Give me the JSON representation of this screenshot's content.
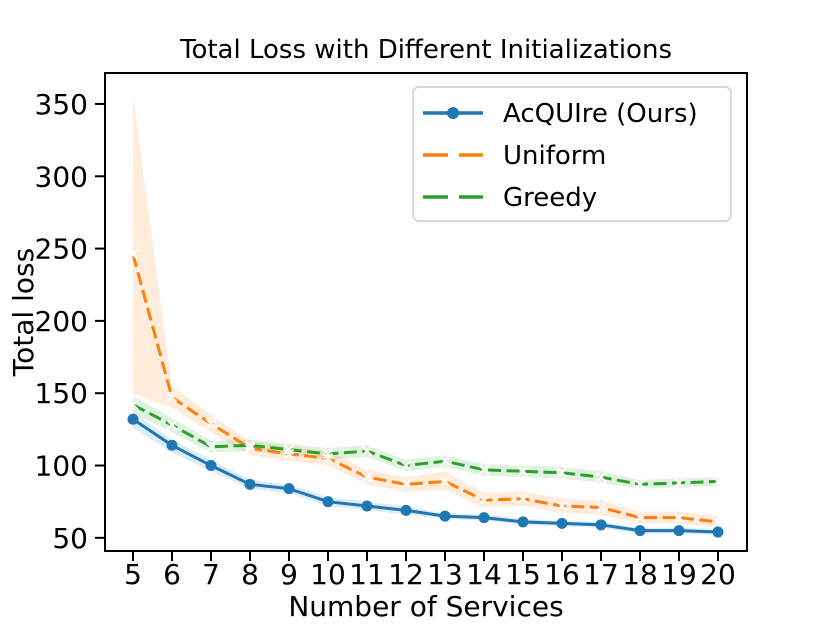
{
  "title": "Total Loss with Different Initializations",
  "chart_data": {
    "type": "line",
    "title": "Total Loss with Different Initializations",
    "xlabel": "Number of Services",
    "ylabel": "Total loss",
    "x": [
      5,
      6,
      7,
      8,
      9,
      10,
      11,
      12,
      13,
      14,
      15,
      16,
      17,
      18,
      19,
      20
    ],
    "xticks": [
      5,
      6,
      7,
      8,
      9,
      10,
      11,
      12,
      13,
      14,
      15,
      16,
      17,
      18,
      19,
      20
    ],
    "yticks": [
      50,
      100,
      150,
      200,
      250,
      300,
      350
    ],
    "xlim": [
      4.282,
      20.744
    ],
    "ylim": [
      40.9,
      371.4
    ],
    "grid": false,
    "legend_position": "upper right",
    "series": [
      {
        "name": "AcQUIre (Ours)",
        "color": "#1f77b4",
        "style": "solid",
        "marker": "circle",
        "values": [
          132,
          114,
          100,
          87,
          84,
          75,
          72,
          69,
          65,
          64,
          61,
          60,
          59,
          55,
          55,
          54
        ],
        "band_lower": [
          126,
          109,
          96,
          84,
          81,
          72,
          69,
          66,
          63,
          62,
          59,
          58,
          57,
          53,
          53,
          52
        ],
        "band_upper": [
          137,
          118,
          104,
          90,
          87,
          78,
          75,
          72,
          67,
          66,
          63,
          62,
          61,
          57,
          57,
          56
        ]
      },
      {
        "name": "Uniform",
        "color": "#ff7f0e",
        "style": "dashed",
        "marker": "white-x",
        "values": [
          246,
          147,
          129,
          112,
          108,
          105,
          92,
          87,
          89,
          76,
          77,
          72,
          71,
          64,
          64,
          61
        ],
        "band_lower": [
          150,
          140,
          123,
          107,
          103,
          100,
          87,
          82,
          83,
          71,
          72,
          67,
          66,
          60,
          60,
          57
        ],
        "band_upper": [
          356,
          155,
          135,
          117,
          113,
          110,
          97,
          92,
          96,
          81,
          82,
          77,
          76,
          68,
          68,
          65
        ]
      },
      {
        "name": "Greedy",
        "color": "#2ca02c",
        "style": "dashed",
        "marker": "white-x",
        "values": [
          142,
          128,
          113,
          114,
          111,
          108,
          110,
          100,
          103,
          97,
          96,
          95,
          92,
          87,
          88,
          89
        ],
        "band_lower": [
          136,
          123,
          109,
          110,
          107,
          104,
          106,
          96,
          99,
          93,
          92,
          91,
          88,
          84,
          85,
          86
        ],
        "band_upper": [
          148,
          133,
          117,
          118,
          115,
          112,
          114,
          104,
          107,
          101,
          100,
          99,
          96,
          90,
          91,
          92
        ]
      }
    ]
  },
  "legend": {
    "entries": [
      "AcQUIre (Ours)",
      "Uniform",
      "Greedy"
    ]
  }
}
